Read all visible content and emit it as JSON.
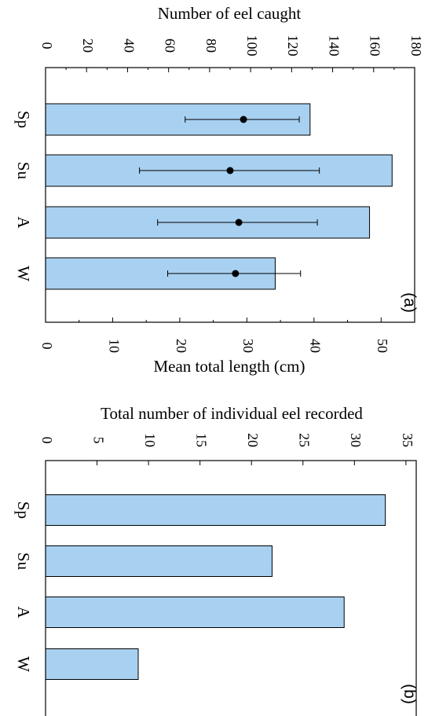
{
  "chart_data": [
    {
      "type": "bar",
      "panel_label": "(a)",
      "orientation": "horizontal, figure rotated 90°",
      "categories": [
        "Sp",
        "Su",
        "A",
        "W"
      ],
      "series": [
        {
          "name": "Number of eel caught",
          "values": [
            129,
            169,
            158,
            112
          ],
          "axis": "top"
        }
      ],
      "points": {
        "name": "Mean total length (cm)",
        "axis": "bottom",
        "values": [
          29.5,
          27.5,
          28.8,
          28.3
        ],
        "err_low": [
          20.8,
          14.0,
          16.7,
          18.2
        ],
        "err_high": [
          37.8,
          40.8,
          40.5,
          38.0
        ]
      },
      "top_axis": {
        "label": "Number of eel caught",
        "range": [
          0,
          180
        ],
        "ticks": [
          "0",
          "20",
          "40",
          "60",
          "80",
          "100",
          "120",
          "140",
          "160",
          "180"
        ]
      },
      "bottom_axis": {
        "label": "Mean total length (cm)",
        "range": [
          0,
          55
        ],
        "ticks": [
          "0",
          "10",
          "20",
          "30",
          "40",
          "50"
        ]
      },
      "colors": {
        "bar_fill": "#A8D0F0",
        "bar_stroke": "#000000",
        "point": "#000000"
      },
      "grid": false
    },
    {
      "type": "bar",
      "panel_label": "(b)",
      "orientation": "horizontal, figure rotated 90°",
      "categories": [
        "Sp",
        "Su",
        "A",
        "W"
      ],
      "series": [
        {
          "name": "Total number of individual eel recorded",
          "values": [
            33,
            22,
            29,
            9
          ]
        }
      ],
      "top_axis": {
        "label": "Total number of individual eel recorded",
        "range": [
          0,
          36
        ],
        "ticks": [
          "0",
          "5",
          "10",
          "15",
          "20",
          "25",
          "30",
          "35"
        ]
      },
      "colors": {
        "bar_fill": "#A8D0F0",
        "bar_stroke": "#000000"
      },
      "grid": false
    }
  ]
}
